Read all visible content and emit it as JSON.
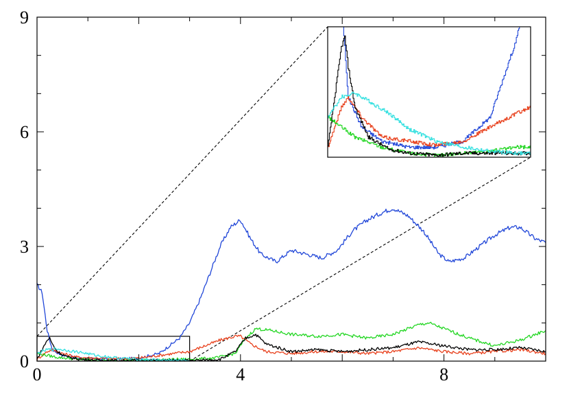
{
  "chart_data": {
    "type": "line",
    "title": "",
    "xlabel": "",
    "ylabel": "",
    "xlim": [
      0,
      10
    ],
    "ylim": [
      0,
      9
    ],
    "x_ticks": [
      0,
      4,
      8
    ],
    "y_ticks": [
      0,
      3,
      6,
      9
    ],
    "grid": false,
    "legend": "none",
    "zoom_region": {
      "x": [
        0,
        3
      ],
      "y": [
        0,
        0.65
      ]
    },
    "series": [
      {
        "color": "#2046d8",
        "x": [
          0,
          0.1,
          0.2,
          0.3,
          0.5,
          0.8,
          1.2,
          1.6,
          2.0,
          2.4,
          2.8,
          3.0,
          3.2,
          3.4,
          3.6,
          3.8,
          4.0,
          4.2,
          4.4,
          4.7,
          5.0,
          5.3,
          5.6,
          5.9,
          6.2,
          6.5,
          6.8,
          7.0,
          7.3,
          7.6,
          7.9,
          8.1,
          8.4,
          8.7,
          9.0,
          9.3,
          9.5,
          9.8,
          10.0
        ],
        "y": [
          2.0,
          1.8,
          0.8,
          0.3,
          0.15,
          0.08,
          0.05,
          0.05,
          0.08,
          0.2,
          0.6,
          1.0,
          1.6,
          2.3,
          3.0,
          3.5,
          3.7,
          3.2,
          2.8,
          2.6,
          2.9,
          2.8,
          2.7,
          2.9,
          3.4,
          3.7,
          3.9,
          4.0,
          3.8,
          3.4,
          2.8,
          2.6,
          2.7,
          3.0,
          3.3,
          3.5,
          3.5,
          3.2,
          3.1
        ]
      },
      {
        "color": "#e8401c",
        "x": [
          0,
          0.2,
          0.3,
          0.5,
          0.8,
          1.2,
          1.6,
          2.0,
          2.4,
          2.8,
          3.0,
          3.3,
          3.6,
          3.9,
          4.0,
          4.2,
          4.5,
          5.0,
          5.5,
          6.0,
          6.5,
          7.0,
          7.5,
          8.0,
          8.5,
          9.0,
          9.5,
          10.0
        ],
        "y": [
          0.05,
          0.25,
          0.3,
          0.2,
          0.1,
          0.08,
          0.06,
          0.08,
          0.15,
          0.22,
          0.25,
          0.4,
          0.55,
          0.65,
          0.65,
          0.45,
          0.25,
          0.2,
          0.25,
          0.25,
          0.2,
          0.25,
          0.35,
          0.25,
          0.2,
          0.25,
          0.3,
          0.2
        ]
      },
      {
        "color": "#22d622",
        "x": [
          0,
          0.2,
          0.4,
          0.8,
          1.2,
          1.6,
          2.0,
          2.4,
          2.8,
          3.0,
          3.5,
          3.9,
          4.1,
          4.3,
          4.6,
          5.0,
          5.5,
          6.0,
          6.5,
          7.0,
          7.5,
          7.7,
          8.0,
          8.5,
          9.0,
          9.5,
          10.0
        ],
        "y": [
          0.2,
          0.15,
          0.1,
          0.05,
          0.02,
          0.01,
          0.02,
          0.03,
          0.05,
          0.05,
          0.08,
          0.2,
          0.6,
          0.85,
          0.8,
          0.7,
          0.65,
          0.7,
          0.6,
          0.7,
          0.95,
          1.0,
          0.85,
          0.6,
          0.4,
          0.55,
          0.8
        ]
      },
      {
        "color": "#000000",
        "x": [
          0,
          0.1,
          0.2,
          0.25,
          0.3,
          0.4,
          0.6,
          0.9,
          1.2,
          1.6,
          2.0,
          2.4,
          2.8,
          3.2,
          3.6,
          3.9,
          4.1,
          4.3,
          4.5,
          5.0,
          5.5,
          6.0,
          6.5,
          7.0,
          7.5,
          8.0,
          8.5,
          9.0,
          9.5,
          10.0
        ],
        "y": [
          0.05,
          0.3,
          0.55,
          0.6,
          0.45,
          0.25,
          0.1,
          0.04,
          0.02,
          0.01,
          0.02,
          0.02,
          0.02,
          0.02,
          0.05,
          0.25,
          0.6,
          0.7,
          0.45,
          0.25,
          0.3,
          0.25,
          0.3,
          0.35,
          0.5,
          0.4,
          0.3,
          0.3,
          0.35,
          0.25
        ]
      },
      {
        "color": "#33e0e0",
        "x": [
          0,
          0.2,
          0.4,
          0.6,
          0.9,
          1.2,
          1.6,
          2.0,
          2.4,
          2.8,
          3.0
        ],
        "y": [
          0.2,
          0.3,
          0.32,
          0.28,
          0.22,
          0.14,
          0.08,
          0.05,
          0.03,
          0.02,
          0.02
        ]
      }
    ]
  }
}
